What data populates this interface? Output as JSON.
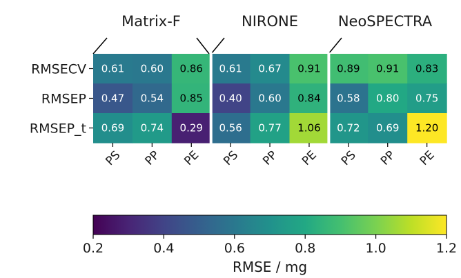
{
  "chart_data": {
    "type": "heatmap",
    "groups": [
      "Matrix-F",
      "NIRONE",
      "NeoSPECTRA"
    ],
    "x_categories": [
      "PS",
      "PP",
      "PE",
      "PS",
      "PP",
      "PE",
      "PS",
      "PP",
      "PE"
    ],
    "y_categories": [
      "RMSECV",
      "RMSEP",
      "RMSEP_t"
    ],
    "values": [
      [
        0.61,
        0.6,
        0.86,
        0.61,
        0.67,
        0.91,
        0.89,
        0.91,
        0.83
      ],
      [
        0.47,
        0.54,
        0.85,
        0.4,
        0.6,
        0.84,
        0.58,
        0.8,
        0.75
      ],
      [
        0.69,
        0.74,
        0.29,
        0.56,
        0.77,
        1.06,
        0.72,
        0.69,
        1.2
      ]
    ],
    "value_labels": [
      [
        "0.61",
        "0.60",
        "0.86",
        "0.61",
        "0.67",
        "0.91",
        "0.89",
        "0.91",
        "0.83"
      ],
      [
        "0.47",
        "0.54",
        "0.85",
        "0.40",
        "0.60",
        "0.84",
        "0.58",
        "0.80",
        "0.75"
      ],
      [
        "0.69",
        "0.74",
        "0.29",
        "0.56",
        "0.77",
        "1.06",
        "0.72",
        "0.69",
        "1.20"
      ]
    ],
    "colormap": "viridis",
    "colorbar": {
      "label": "RMSE / mg",
      "range": [
        0.2,
        1.2
      ],
      "ticks": [
        "0.2",
        "0.4",
        "0.6",
        "0.8",
        "1.0",
        "1.2"
      ]
    }
  }
}
